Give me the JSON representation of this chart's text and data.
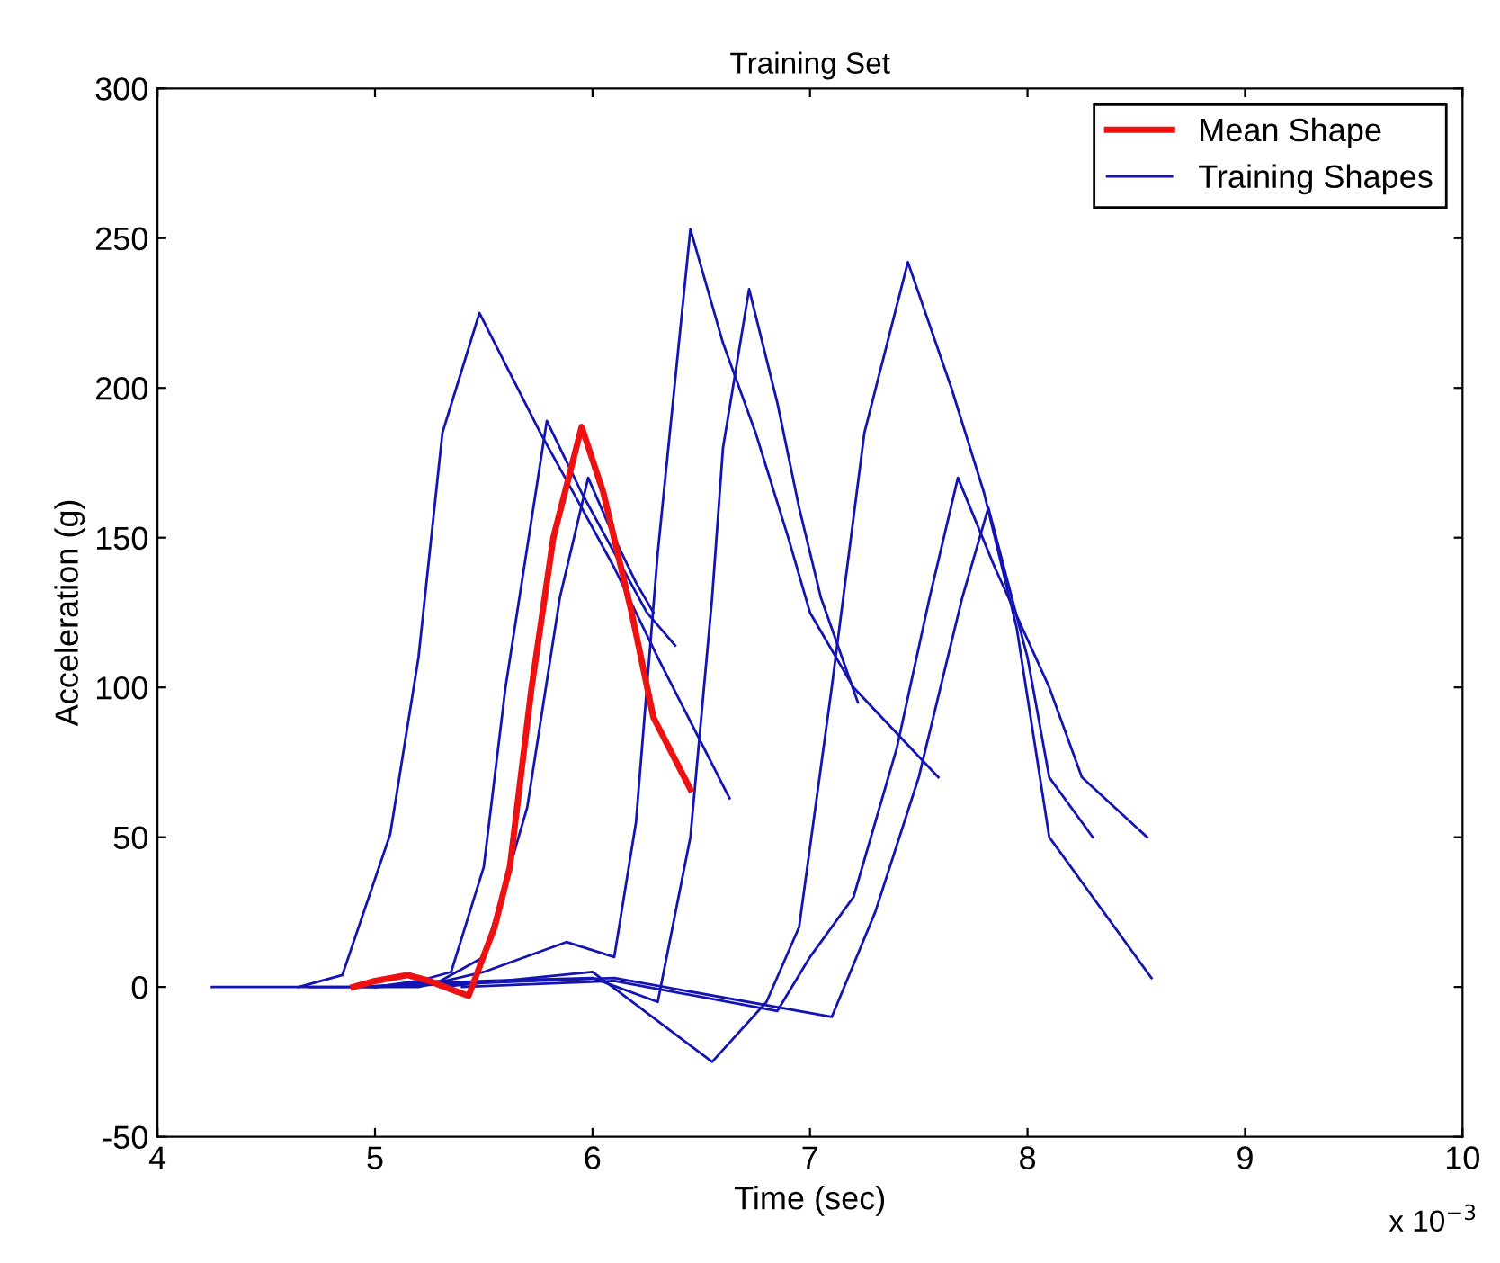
{
  "chart_data": {
    "type": "line",
    "title": "Training Set",
    "xlabel": "Time (sec)",
    "ylabel": "Acceleration (g)",
    "annotations": [
      "x 10$^{−3}$"
    ],
    "xlim": [
      4,
      10
    ],
    "xticks": [
      4,
      5,
      6,
      7,
      8,
      9,
      10
    ],
    "ylim": [
      -50,
      300
    ],
    "yticks": [
      -50,
      0,
      50,
      100,
      150,
      200,
      250,
      300
    ],
    "grid": false,
    "legend": "top right",
    "line_style": "solid",
    "marker": "none",
    "series": [
      {
        "name": "Mean Shape",
        "color": "#ee1111",
        "x": [
          4.9,
          5.0,
          5.15,
          5.25,
          5.43,
          5.55,
          5.62,
          5.72,
          5.82,
          5.95,
          6.05,
          6.18,
          6.28,
          6.45
        ],
        "values": [
          0,
          2,
          4,
          2,
          -3,
          20,
          40,
          100,
          150,
          187,
          165,
          125,
          90,
          66
        ]
      },
      {
        "name": "Training Shapes",
        "color": "#1414b4",
        "x": [
          4.25,
          4.65,
          4.85,
          5.07,
          5.2,
          5.31,
          5.48,
          5.76,
          5.95,
          6.1,
          6.3,
          6.63
        ],
        "values": [
          0,
          0,
          4,
          51,
          110,
          185,
          225,
          185,
          160,
          140,
          110,
          63
        ]
      },
      {
        "color": "#1414b4",
        "x": [
          4.65,
          5.0,
          5.2,
          5.35,
          5.5,
          5.6,
          5.79,
          5.95,
          6.1,
          6.25,
          6.38
        ],
        "values": [
          0,
          0,
          2,
          5,
          40,
          100,
          189,
          165,
          145,
          125,
          114
        ]
      },
      {
        "color": "#1414b4",
        "x": [
          5.0,
          5.3,
          5.5,
          5.7,
          5.85,
          5.98,
          6.1,
          6.2,
          6.28
        ],
        "values": [
          0,
          2,
          10,
          60,
          130,
          170,
          150,
          135,
          125
        ]
      },
      {
        "color": "#1414b4",
        "x": [
          4.7,
          5.2,
          5.5,
          5.88,
          6.1,
          6.2,
          6.3,
          6.45,
          6.6,
          6.75,
          6.9,
          7.0,
          7.2,
          7.59
        ],
        "values": [
          0,
          0,
          5,
          15,
          10,
          55,
          145,
          253,
          215,
          185,
          150,
          125,
          100,
          70
        ]
      },
      {
        "color": "#1414b4",
        "x": [
          4.9,
          5.5,
          6.0,
          6.3,
          6.45,
          6.55,
          6.6,
          6.72,
          6.85,
          6.95,
          7.05,
          7.22
        ],
        "values": [
          0,
          2,
          3,
          -5,
          50,
          130,
          180,
          233,
          195,
          160,
          130,
          95
        ]
      },
      {
        "color": "#1414b4",
        "x": [
          5.0,
          6.1,
          7.1,
          7.3,
          7.5,
          7.7,
          7.82,
          8.0,
          8.1,
          8.3
        ],
        "values": [
          0,
          3,
          -10,
          25,
          70,
          130,
          160,
          110,
          70,
          50
        ]
      },
      {
        "color": "#1414b4",
        "x": [
          5.4,
          6.1,
          6.85,
          7.0,
          7.2,
          7.4,
          7.55,
          7.68,
          7.85,
          8.1,
          8.25,
          8.55
        ],
        "values": [
          0,
          2,
          -8,
          10,
          30,
          80,
          130,
          170,
          140,
          100,
          70,
          50
        ]
      },
      {
        "color": "#1414b4",
        "x": [
          5.3,
          6.0,
          6.55,
          6.8,
          6.95,
          7.1,
          7.25,
          7.45,
          7.65,
          7.8,
          7.95,
          8.1,
          8.3,
          8.57
        ],
        "values": [
          0,
          5,
          -25,
          -5,
          20,
          100,
          185,
          242,
          200,
          165,
          120,
          50,
          30,
          3
        ]
      }
    ]
  }
}
